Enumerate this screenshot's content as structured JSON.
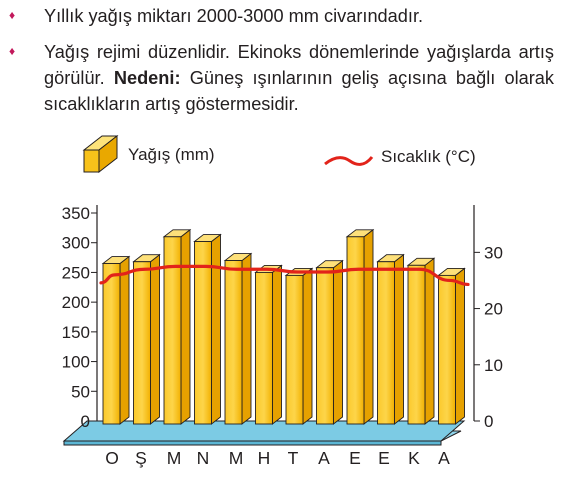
{
  "bullets": [
    {
      "text": "Yıllık yağış miktarı 2000-3000 mm civarındadır."
    },
    {
      "text_before": "Yağış rejimi düzenlidir. Ekinoks dönemlerinde yağışlarda artış görülür. ",
      "bold": "Nedeni:",
      "text_after": " Güneş ışınlarının geliş açısına bağlı olarak sıcaklıkların artış göstermesidir."
    }
  ],
  "chart_data": {
    "type": "bar",
    "categories": [
      "O",
      "Ş",
      "M",
      "N",
      "M",
      "H",
      "T",
      "A",
      "E",
      "E",
      "K",
      "A"
    ],
    "series": [
      {
        "name": "Yağış (mm)",
        "axis": "left",
        "values": [
          265,
          268,
          310,
          302,
          270,
          250,
          245,
          258,
          310,
          268,
          262,
          245
        ],
        "color": "#f5b800"
      },
      {
        "name": "Sıcaklık (°C)",
        "axis": "right",
        "type": "line",
        "values": [
          26,
          27,
          27.5,
          27.5,
          27,
          27,
          26.5,
          26.5,
          27,
          27,
          27,
          25
        ],
        "color": "#e2231a"
      }
    ],
    "left_axis": {
      "ticks": [
        0,
        50,
        100,
        150,
        200,
        250,
        300,
        350
      ],
      "range": [
        0,
        350
      ]
    },
    "right_axis": {
      "ticks": [
        0,
        10,
        20,
        30
      ],
      "range": [
        0,
        37
      ]
    },
    "legend_placement": "top",
    "grid": false
  }
}
